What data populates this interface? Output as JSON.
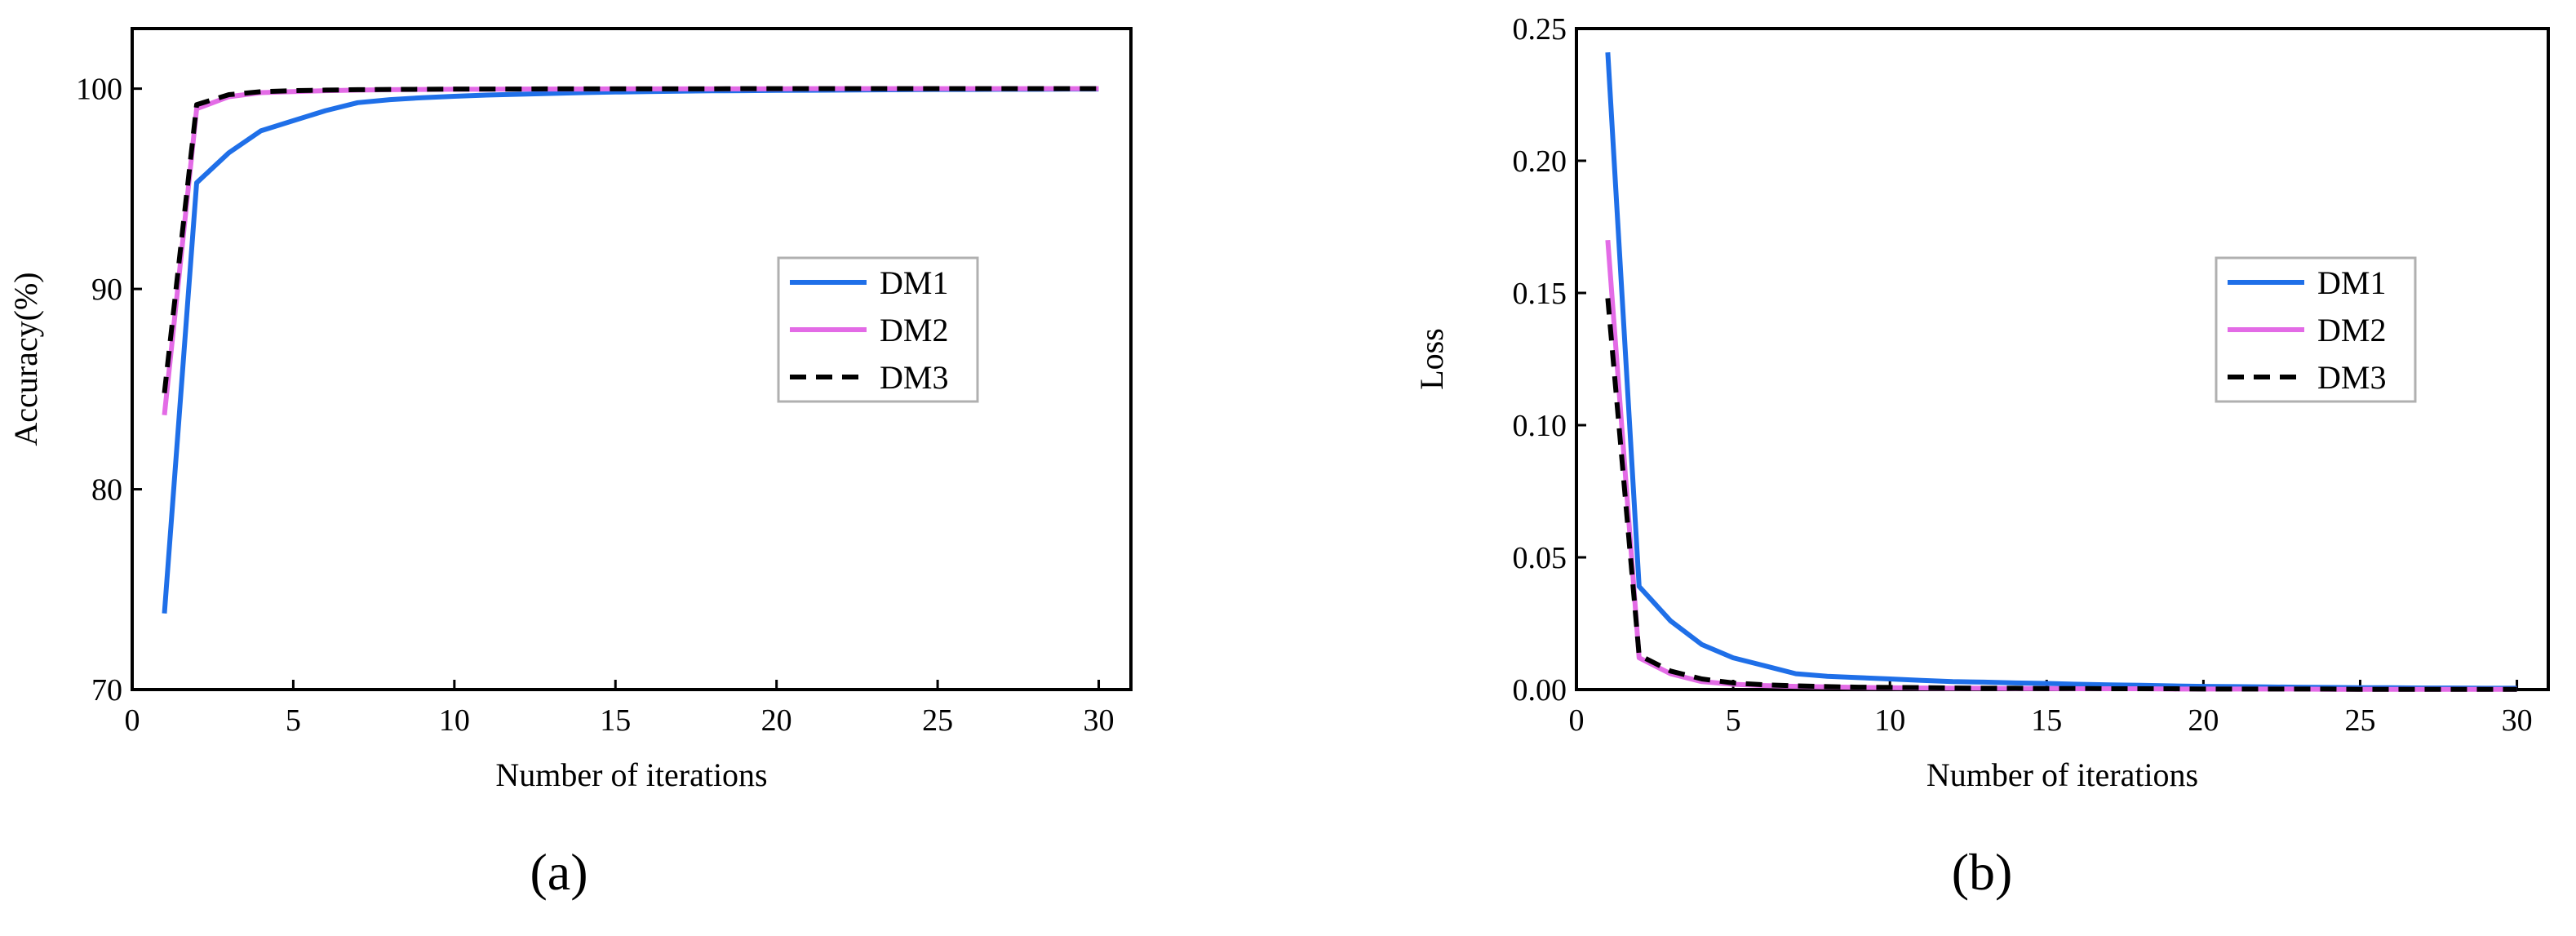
{
  "chart_data": [
    {
      "type": "line",
      "panel_label": "(a)",
      "xlabel": "Number of iterations",
      "ylabel": "Accuracy(%)",
      "xlim": [
        0,
        31
      ],
      "ylim": [
        70,
        103
      ],
      "xticks": [
        0,
        5,
        10,
        15,
        20,
        25,
        30
      ],
      "yticks": [
        70,
        80,
        90,
        100
      ],
      "grid": false,
      "legend_position": "right-middle",
      "series": [
        {
          "name": "DM1",
          "color": "#1f6fe8",
          "dash": "solid",
          "x": [
            1,
            2,
            3,
            4,
            5,
            6,
            7,
            8,
            9,
            10,
            11,
            12,
            13,
            14,
            15,
            16,
            17,
            18,
            19,
            20,
            21,
            22,
            23,
            24,
            25,
            26,
            27,
            28,
            29,
            30
          ],
          "y": [
            73.8,
            95.3,
            96.8,
            97.9,
            98.4,
            98.9,
            99.3,
            99.45,
            99.55,
            99.62,
            99.68,
            99.72,
            99.76,
            99.8,
            99.83,
            99.85,
            99.87,
            99.89,
            99.9,
            99.91,
            99.92,
            99.93,
            99.94,
            99.95,
            99.96,
            99.96,
            99.97,
            99.97,
            99.98,
            99.98
          ]
        },
        {
          "name": "DM2",
          "color": "#e36be6",
          "dash": "solid",
          "x": [
            1,
            2,
            3,
            4,
            5,
            6,
            7,
            8,
            9,
            10,
            11,
            12,
            13,
            14,
            15,
            16,
            17,
            18,
            19,
            20,
            21,
            22,
            23,
            24,
            25,
            26,
            27,
            28,
            29,
            30
          ],
          "y": [
            83.7,
            99.0,
            99.6,
            99.8,
            99.85,
            99.9,
            99.93,
            99.95,
            99.96,
            99.97,
            99.97,
            99.98,
            99.98,
            99.98,
            99.99,
            99.99,
            99.99,
            99.99,
            99.99,
            99.99,
            100,
            100,
            100,
            100,
            100,
            100,
            100,
            100,
            100,
            100
          ]
        },
        {
          "name": "DM3",
          "color": "#000000",
          "dash": "dashed",
          "x": [
            1,
            2,
            3,
            4,
            5,
            6,
            7,
            8,
            9,
            10,
            11,
            12,
            13,
            14,
            15,
            16,
            17,
            18,
            19,
            20,
            21,
            22,
            23,
            24,
            25,
            26,
            27,
            28,
            29,
            30
          ],
          "y": [
            84.8,
            99.2,
            99.7,
            99.85,
            99.9,
            99.93,
            99.95,
            99.96,
            99.97,
            99.98,
            99.98,
            99.98,
            99.99,
            99.99,
            99.99,
            99.99,
            99.99,
            99.99,
            100,
            100,
            100,
            100,
            100,
            100,
            100,
            100,
            100,
            100,
            100,
            100
          ]
        }
      ]
    },
    {
      "type": "line",
      "panel_label": "(b)",
      "xlabel": "Number of iterations",
      "ylabel": "Loss",
      "xlim": [
        0,
        31
      ],
      "ylim": [
        0,
        0.25
      ],
      "xticks": [
        0,
        5,
        10,
        15,
        20,
        25,
        30
      ],
      "yticks": [
        0.0,
        0.05,
        0.1,
        0.15,
        0.2,
        0.25
      ],
      "grid": false,
      "legend_position": "right-middle",
      "series": [
        {
          "name": "DM1",
          "color": "#1f6fe8",
          "dash": "solid",
          "x": [
            1,
            2,
            3,
            4,
            5,
            6,
            7,
            8,
            9,
            10,
            11,
            12,
            13,
            14,
            15,
            16,
            17,
            18,
            19,
            20,
            21,
            22,
            23,
            24,
            25,
            26,
            27,
            28,
            29,
            30
          ],
          "y": [
            0.241,
            0.039,
            0.026,
            0.017,
            0.012,
            0.009,
            0.006,
            0.005,
            0.0045,
            0.004,
            0.0035,
            0.003,
            0.0028,
            0.0025,
            0.0023,
            0.002,
            0.0018,
            0.0016,
            0.0014,
            0.0012,
            0.0011,
            0.001,
            0.0009,
            0.0008,
            0.0007,
            0.0007,
            0.0006,
            0.0006,
            0.0005,
            0.0005
          ]
        },
        {
          "name": "DM2",
          "color": "#e36be6",
          "dash": "solid",
          "x": [
            1,
            2,
            3,
            4,
            5,
            6,
            7,
            8,
            9,
            10,
            11,
            12,
            13,
            14,
            15,
            16,
            17,
            18,
            19,
            20,
            21,
            22,
            23,
            24,
            25,
            26,
            27,
            28,
            29,
            30
          ],
          "y": [
            0.17,
            0.012,
            0.006,
            0.003,
            0.002,
            0.0015,
            0.0012,
            0.001,
            0.0008,
            0.0007,
            0.0006,
            0.0005,
            0.0005,
            0.0004,
            0.0004,
            0.0003,
            0.0003,
            0.0003,
            0.0002,
            0.0002,
            0.0002,
            0.0002,
            0.0002,
            0.0001,
            0.0001,
            0.0001,
            0.0001,
            0.0001,
            0.0001,
            0.0001
          ]
        },
        {
          "name": "DM3",
          "color": "#000000",
          "dash": "dashed",
          "x": [
            1,
            2,
            3,
            4,
            5,
            6,
            7,
            8,
            9,
            10,
            11,
            12,
            13,
            14,
            15,
            16,
            17,
            18,
            19,
            20,
            21,
            22,
            23,
            24,
            25,
            26,
            27,
            28,
            29,
            30
          ],
          "y": [
            0.148,
            0.013,
            0.007,
            0.004,
            0.0025,
            0.0018,
            0.0014,
            0.0011,
            0.0009,
            0.0008,
            0.0007,
            0.0006,
            0.0005,
            0.0005,
            0.0004,
            0.0004,
            0.0003,
            0.0003,
            0.0003,
            0.0002,
            0.0002,
            0.0002,
            0.0002,
            0.0002,
            0.0001,
            0.0001,
            0.0001,
            0.0001,
            0.0001,
            0.0001
          ]
        }
      ]
    }
  ]
}
